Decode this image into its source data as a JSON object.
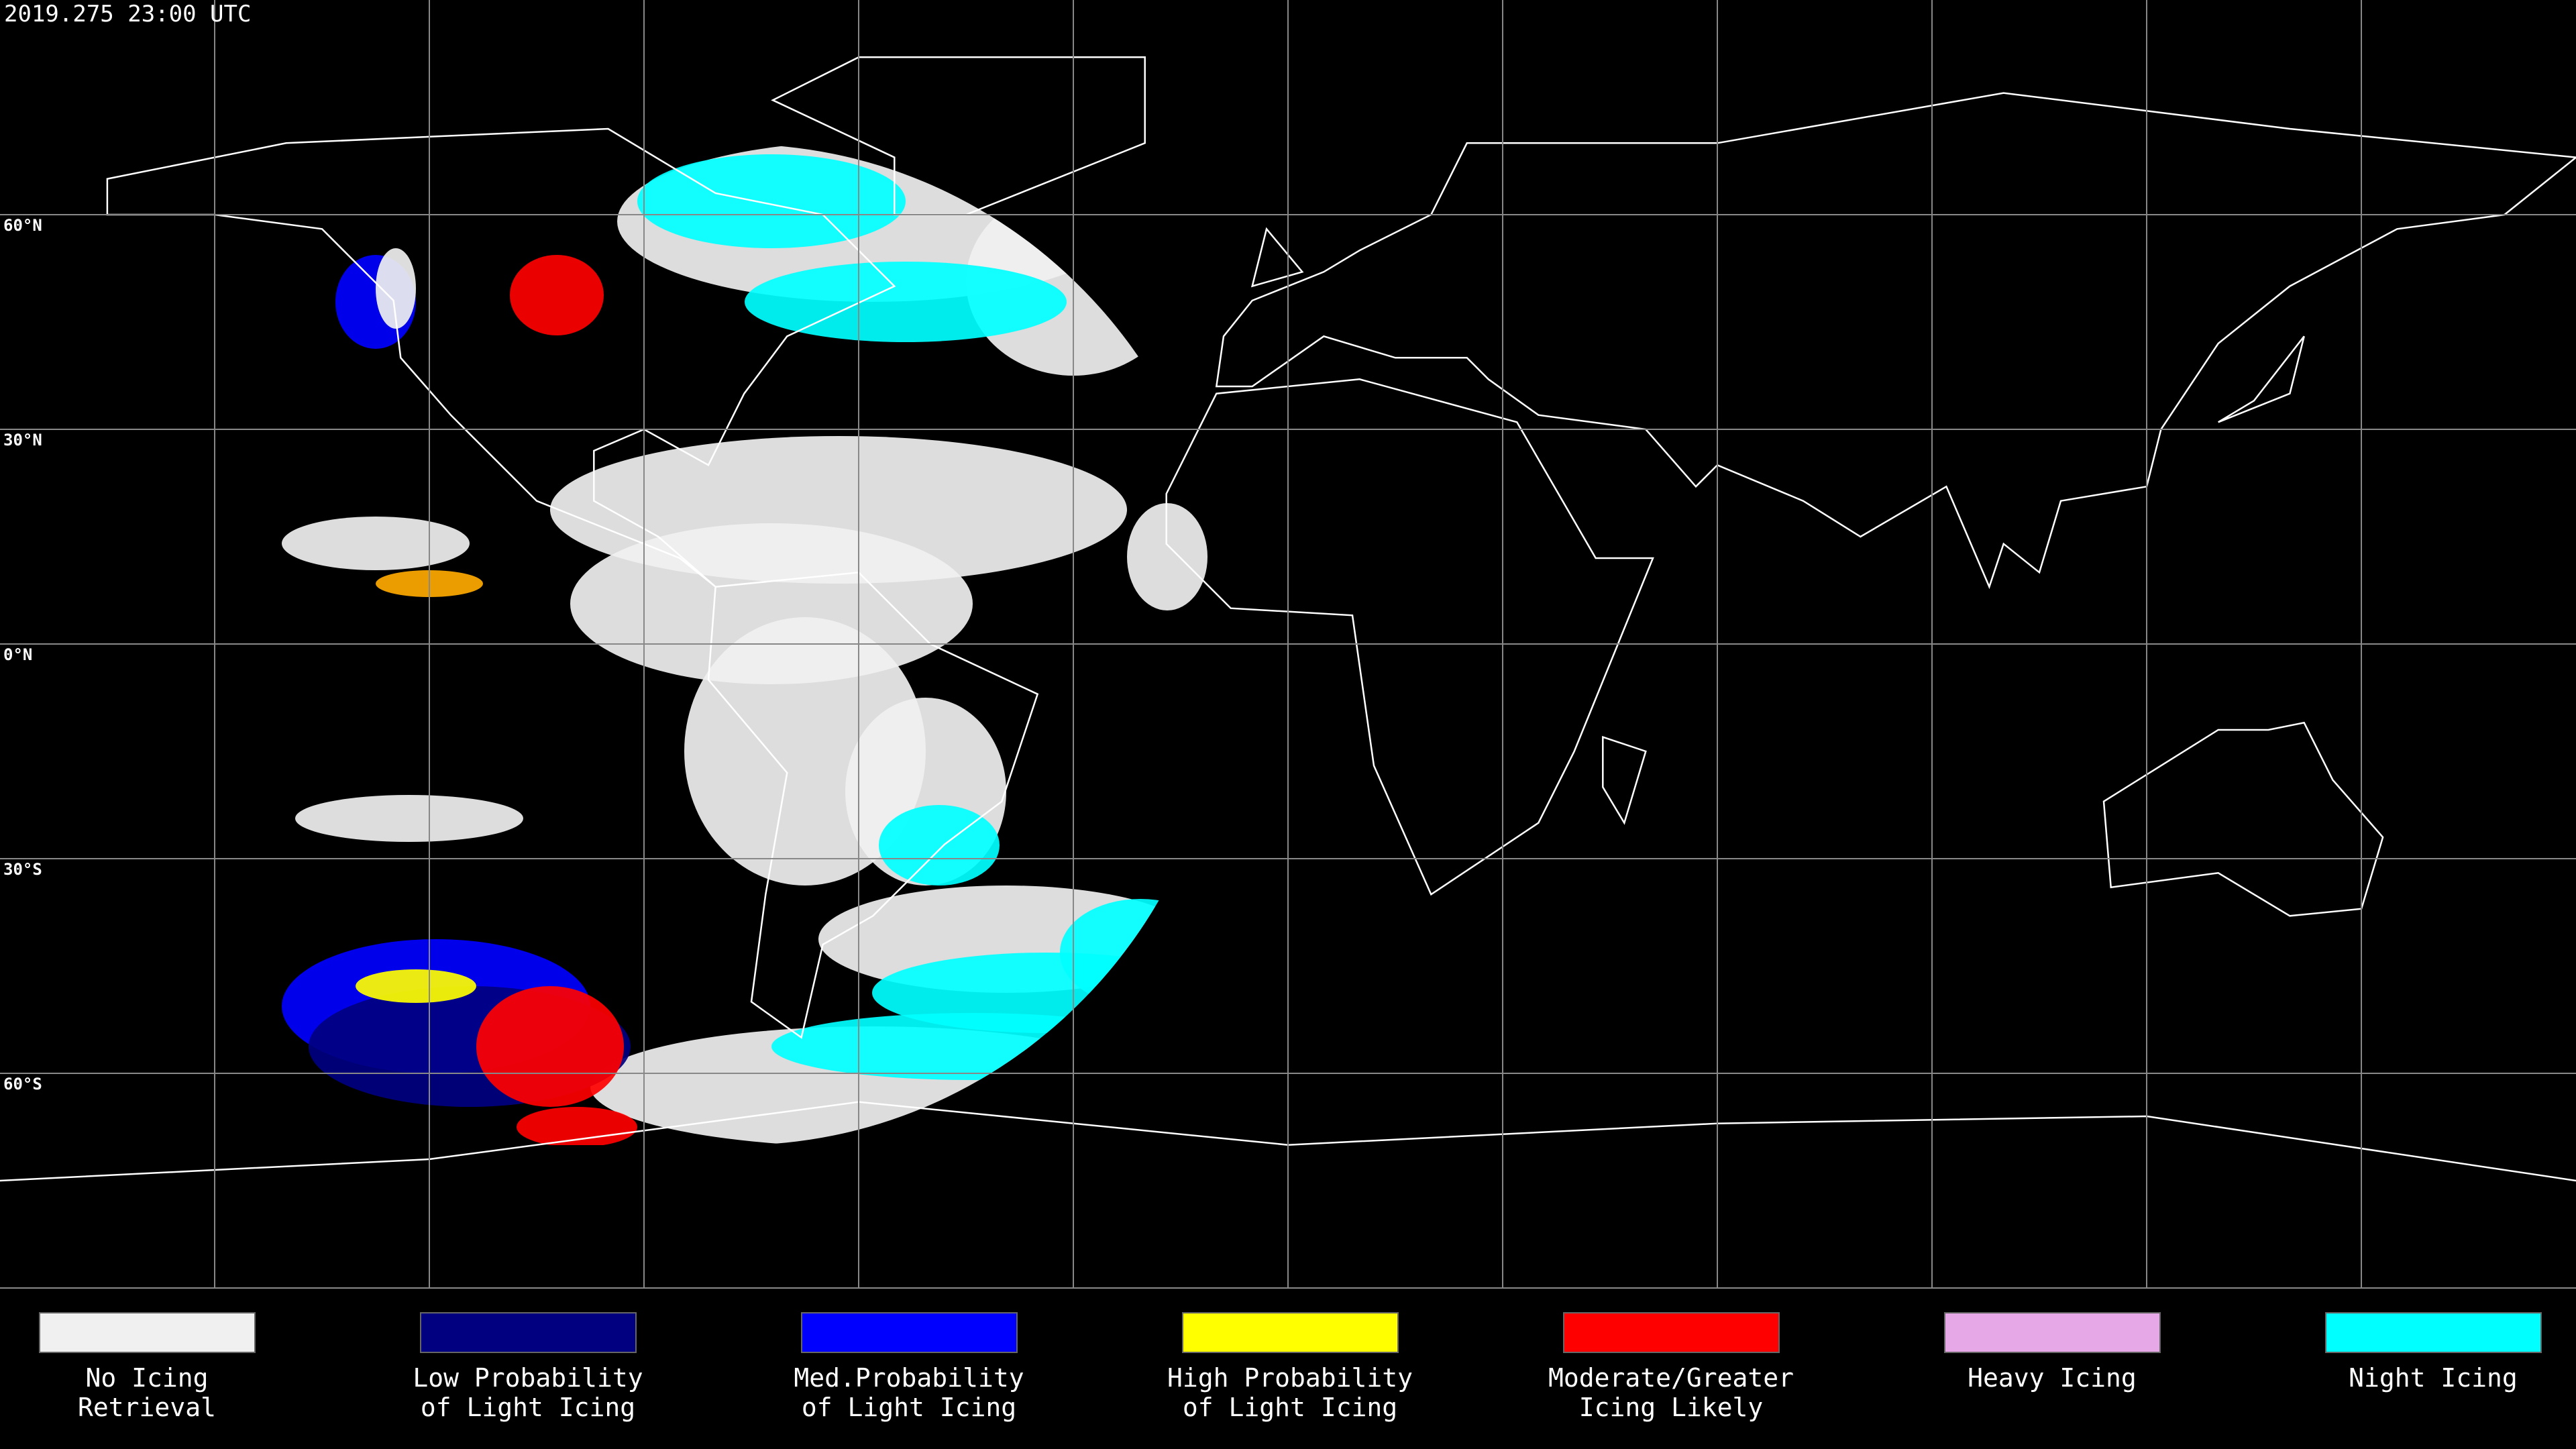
{
  "timestamp": "2019.275 23:00 UTC",
  "latitude_labels": [
    "60°N",
    "30°N",
    "0°N",
    "30°S",
    "60°S"
  ],
  "legend": [
    {
      "label": [
        "No Icing",
        "Retrieval"
      ],
      "color": "#f0f0f0"
    },
    {
      "label": [
        "Low Probability",
        "of Light Icing"
      ],
      "color": "#000080"
    },
    {
      "label": [
        "Med.Probability",
        "of Light Icing"
      ],
      "color": "#0000ff"
    },
    {
      "label": [
        "High Probability",
        "of Light Icing"
      ],
      "color": "#ffff00"
    },
    {
      "label": [
        "Moderate/Greater",
        "Icing Likely"
      ],
      "color": "#ff0000"
    },
    {
      "label": [
        "Heavy Icing"
      ],
      "color": "#e6a8e6"
    },
    {
      "label": [
        "Night Icing"
      ],
      "color": "#00ffff"
    }
  ]
}
